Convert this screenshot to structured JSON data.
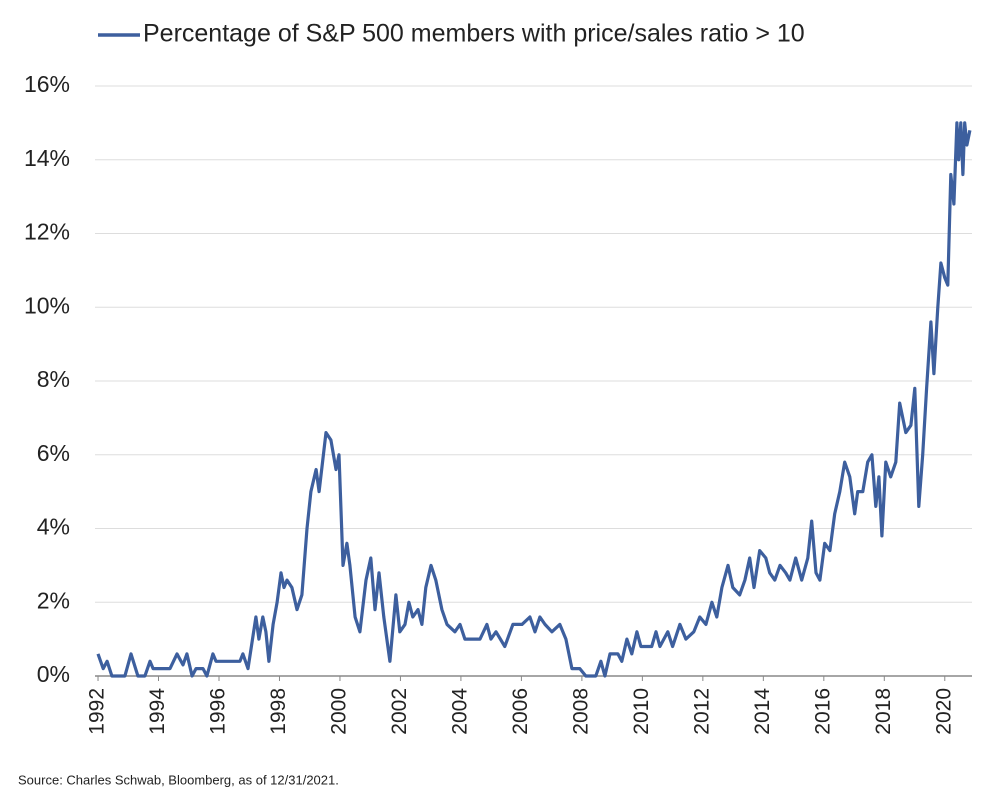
{
  "chart_data": {
    "type": "line",
    "note_source": "Source: Charles Schwab, Bloomberg, as of 12/31/2021.",
    "x": [
      1992.0,
      1992.17,
      1992.3,
      1992.46,
      1992.89,
      1993.09,
      1993.32,
      1993.55,
      1993.72,
      1993.82,
      1994.38,
      1994.61,
      1994.81,
      1994.94,
      1995.11,
      1995.24,
      1995.47,
      1995.6,
      1995.8,
      1995.9,
      1996.69,
      1996.79,
      1996.96,
      1997.22,
      1997.32,
      1997.45,
      1997.55,
      1997.65,
      1997.79,
      1997.92,
      1998.05,
      1998.15,
      1998.25,
      1998.41,
      1998.58,
      1998.74,
      1998.91,
      1999.04,
      1999.21,
      1999.31,
      1999.54,
      1999.7,
      1999.87,
      1999.97,
      2000.1,
      2000.23,
      2000.33,
      2000.5,
      2000.66,
      2000.86,
      2001.02,
      2001.16,
      2001.29,
      2001.45,
      2001.65,
      2001.85,
      2001.98,
      2002.15,
      2002.28,
      2002.41,
      2002.58,
      2002.71,
      2002.84,
      2003.01,
      2003.17,
      2003.37,
      2003.54,
      2003.8,
      2003.97,
      2004.13,
      2004.63,
      2004.86,
      2004.99,
      2005.16,
      2005.45,
      2005.72,
      2006.02,
      2006.28,
      2006.45,
      2006.61,
      2006.78,
      2007.01,
      2007.27,
      2007.47,
      2007.67,
      2007.93,
      2008.13,
      2008.46,
      2008.63,
      2008.76,
      2008.93,
      2009.19,
      2009.32,
      2009.49,
      2009.65,
      2009.82,
      2009.95,
      2010.31,
      2010.45,
      2010.58,
      2010.84,
      2011.0,
      2011.24,
      2011.44,
      2011.7,
      2011.9,
      2012.1,
      2012.3,
      2012.46,
      2012.63,
      2012.83,
      2012.99,
      2013.22,
      2013.39,
      2013.55,
      2013.69,
      2013.88,
      2014.08,
      2014.21,
      2014.38,
      2014.55,
      2014.74,
      2014.88,
      2015.07,
      2015.27,
      2015.47,
      2015.6,
      2015.74,
      2015.87,
      2016.03,
      2016.2,
      2016.36,
      2016.53,
      2016.69,
      2016.86,
      2017.02,
      2017.12,
      2017.29,
      2017.45,
      2017.59,
      2017.72,
      2017.82,
      2017.92,
      2018.05,
      2018.21,
      2018.38,
      2018.51,
      2018.71,
      2018.88,
      2019.01,
      2019.14,
      2019.27,
      2019.4,
      2019.54,
      2019.64,
      2019.77,
      2019.87,
      2020.0,
      2020.1,
      2020.2,
      2020.3,
      2020.4,
      2020.46,
      2020.53,
      2020.6,
      2020.66,
      2020.73,
      2020.83
    ],
    "series": [
      {
        "name": "Percentage of S&P 500 members with price/sales ratio > 10",
        "color": "#3d5f9e",
        "values": [
          0.6,
          0.2,
          0.4,
          0,
          0,
          0.6,
          0,
          0,
          0.4,
          0.2,
          0.2,
          0.6,
          0.3,
          0.6,
          0,
          0.2,
          0.2,
          0,
          0.6,
          0.4,
          0.4,
          0.6,
          0.2,
          1.6,
          1.0,
          1.6,
          1.2,
          0.4,
          1.4,
          2.0,
          2.8,
          2.4,
          2.6,
          2.4,
          1.8,
          2.2,
          4.0,
          5.0,
          5.6,
          5.0,
          6.6,
          6.4,
          5.6,
          6.0,
          3.0,
          3.6,
          3.0,
          1.6,
          1.2,
          2.6,
          3.2,
          1.8,
          2.8,
          1.6,
          0.4,
          2.2,
          1.2,
          1.4,
          2.0,
          1.6,
          1.8,
          1.4,
          2.4,
          3.0,
          2.6,
          1.8,
          1.4,
          1.2,
          1.4,
          1.0,
          1.0,
          1.4,
          1.0,
          1.2,
          0.8,
          1.4,
          1.4,
          1.6,
          1.2,
          1.6,
          1.4,
          1.2,
          1.4,
          1.0,
          0.2,
          0.2,
          0,
          0,
          0.4,
          0,
          0.6,
          0.6,
          0.4,
          1.0,
          0.6,
          1.2,
          0.8,
          0.8,
          1.2,
          0.8,
          1.2,
          0.8,
          1.4,
          1.0,
          1.2,
          1.6,
          1.4,
          2.0,
          1.6,
          2.4,
          3.0,
          2.4,
          2.2,
          2.6,
          3.2,
          2.4,
          3.4,
          3.2,
          2.8,
          2.6,
          3.0,
          2.8,
          2.6,
          3.2,
          2.6,
          3.2,
          4.2,
          2.8,
          2.6,
          3.6,
          3.4,
          4.4,
          5.0,
          5.8,
          5.4,
          4.4,
          5.0,
          5.0,
          5.8,
          6.0,
          4.6,
          5.4,
          3.8,
          5.8,
          5.4,
          5.8,
          7.4,
          6.6,
          6.8,
          7.8,
          4.6,
          6.0,
          7.8,
          9.6,
          8.2,
          10.0,
          11.2,
          10.8,
          10.6,
          13.6,
          12.8,
          15.0,
          14.0,
          15.0,
          13.6,
          15.0,
          14.4,
          14.8
        ]
      }
    ],
    "xlim": [
      1991.9,
      2020.9
    ],
    "xticks": [
      1992,
      1994,
      1996,
      1998,
      2000,
      2002,
      2004,
      2006,
      2008,
      2010,
      2012,
      2014,
      2016,
      2018,
      2020
    ],
    "ylim": [
      0,
      16
    ],
    "yticks": [
      {
        "value": 0,
        "label": "0%"
      },
      {
        "value": 2,
        "label": "2%"
      },
      {
        "value": 4,
        "label": "4%"
      },
      {
        "value": 6,
        "label": "6%"
      },
      {
        "value": 8,
        "label": "8%"
      },
      {
        "value": 10,
        "label": "10%"
      },
      {
        "value": 12,
        "label": "12%"
      },
      {
        "value": 14,
        "label": "14%"
      },
      {
        "value": 16,
        "label": "16%"
      }
    ],
    "grid": true,
    "legend": "top"
  }
}
